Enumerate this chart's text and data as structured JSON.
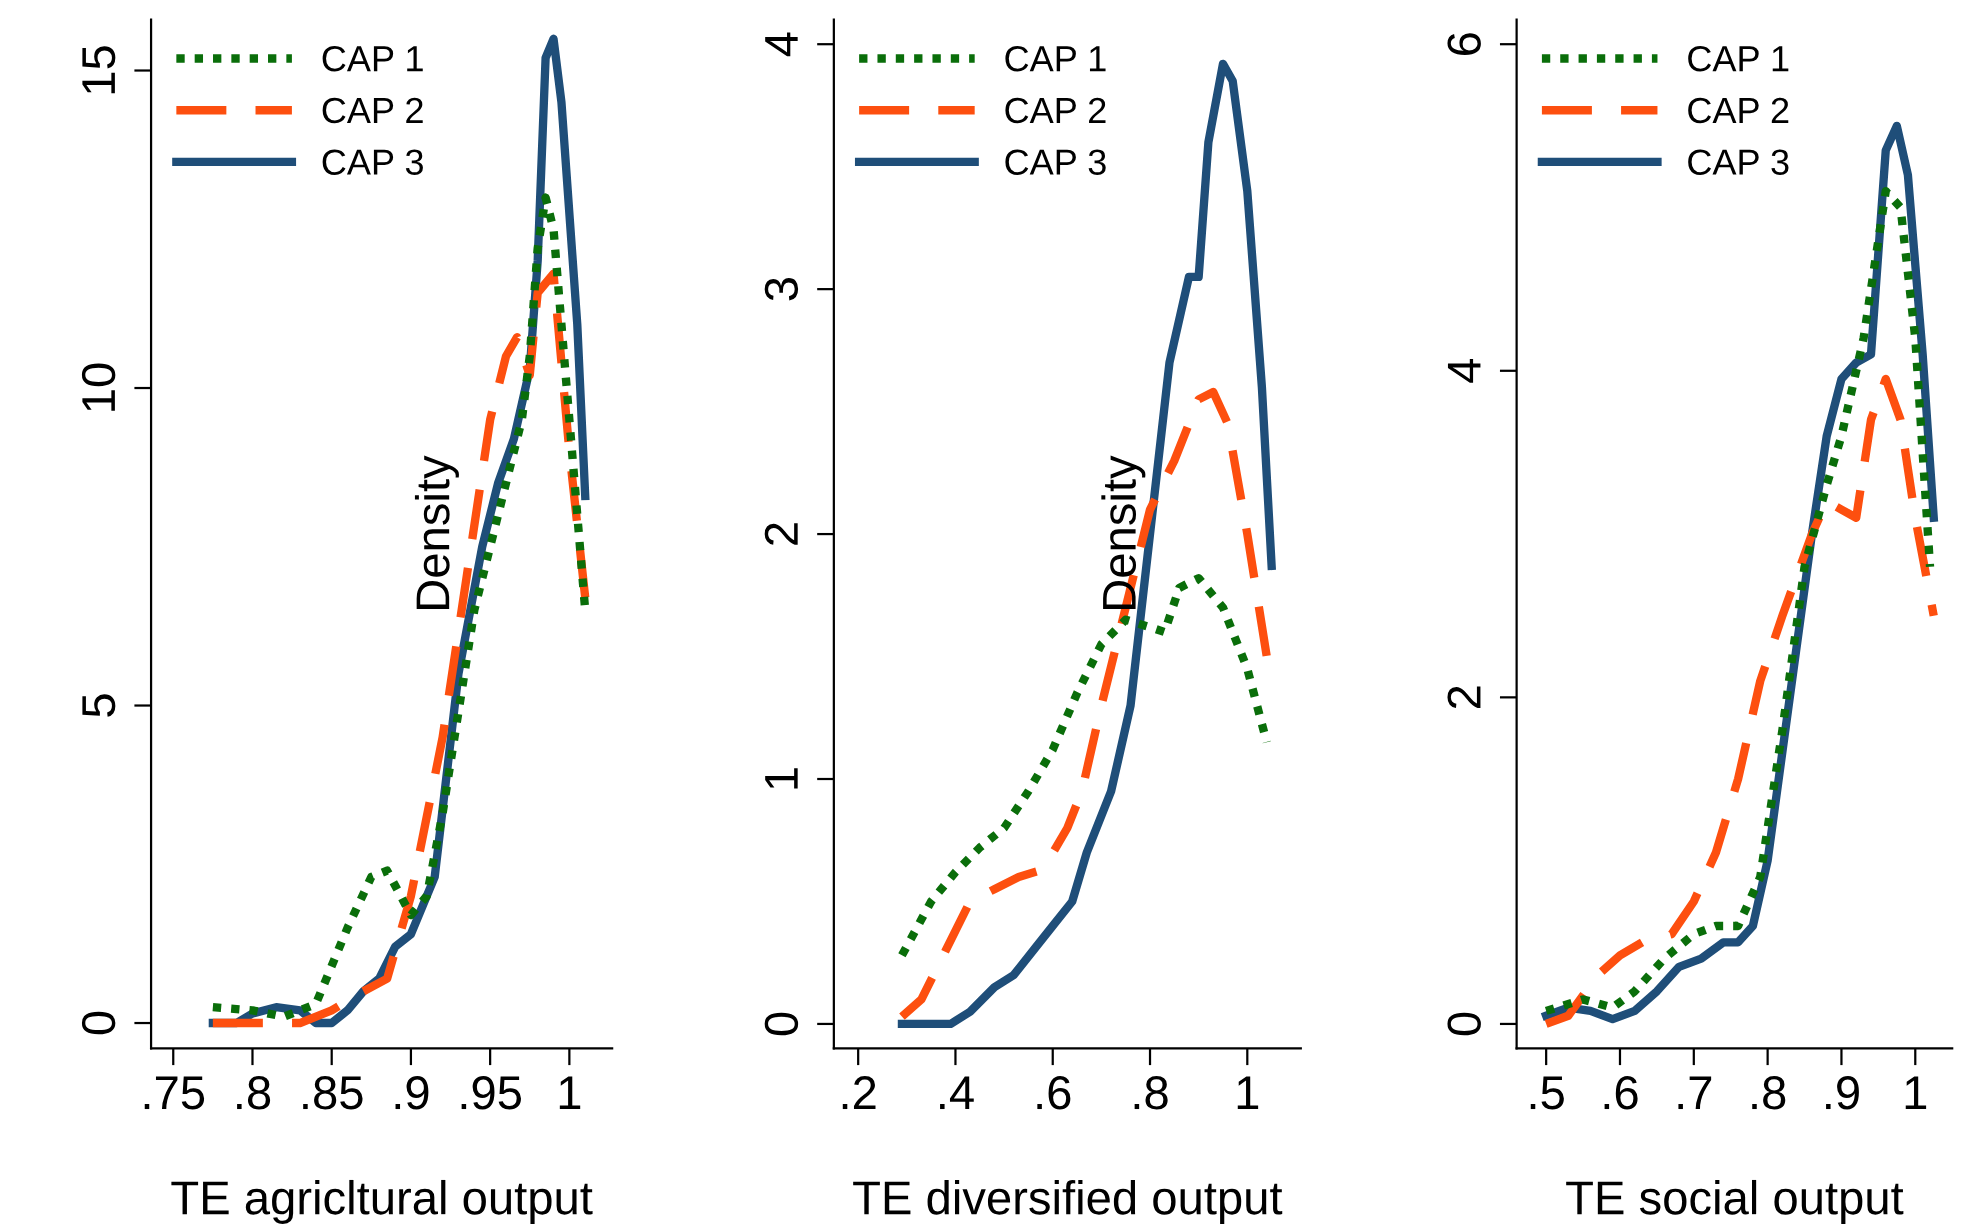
{
  "chart_data": [
    {
      "type": "line",
      "xlabel": "TE agricltural output",
      "annotations": [
        "Density"
      ],
      "xlim": [
        0.736,
        1.027
      ],
      "ylim": [
        -0.4,
        15.8
      ],
      "xticks": [
        {
          "value": 0.75,
          "label": ".75"
        },
        {
          "value": 0.8,
          "label": ".8"
        },
        {
          "value": 0.85,
          "label": ".85"
        },
        {
          "value": 0.9,
          "label": ".9"
        },
        {
          "value": 0.95,
          "label": ".95"
        },
        1
      ],
      "yticks": [
        0,
        5,
        10,
        15
      ],
      "grid": false,
      "legend": "top left",
      "series": [
        {
          "name": "CAP 1",
          "color": "#0a6e0a",
          "line_style": "dotted",
          "x": [
            0.775,
            0.8,
            0.82,
            0.84,
            0.86,
            0.875,
            0.885,
            0.9,
            0.91,
            0.92,
            0.94,
            0.96,
            0.97,
            0.975,
            0.98,
            0.985,
            0.99,
            1.0,
            1.01
          ],
          "values": [
            0.25,
            0.2,
            0.1,
            0.3,
            1.5,
            2.3,
            2.4,
            1.7,
            2.0,
            3.3,
            6.5,
            8.5,
            9.5,
            10.5,
            12.2,
            13.0,
            12.5,
            9.5,
            6.5
          ]
        },
        {
          "name": "CAP 2",
          "color": "#fd4f0f",
          "line_style": "dashed",
          "x": [
            0.775,
            0.8,
            0.83,
            0.85,
            0.87,
            0.885,
            0.9,
            0.92,
            0.935,
            0.95,
            0.96,
            0.967,
            0.975,
            0.98,
            0.99,
            1.0,
            1.01
          ],
          "values": [
            0,
            0,
            0,
            0.2,
            0.5,
            0.7,
            2,
            4.5,
            7,
            9.5,
            10.5,
            10.8,
            10.2,
            11.5,
            11.8,
            9,
            6.7
          ]
        },
        {
          "name": "CAP 3",
          "color": "#1f4e79",
          "line_style": "solid",
          "x": [
            0.775,
            0.79,
            0.8,
            0.815,
            0.83,
            0.84,
            0.85,
            0.86,
            0.87,
            0.88,
            0.89,
            0.9,
            0.915,
            0.93,
            0.945,
            0.955,
            0.965,
            0.975,
            0.98,
            0.985,
            0.99,
            0.995,
            1.005,
            1.01
          ],
          "values": [
            0,
            0,
            0.15,
            0.25,
            0.2,
            0,
            0,
            0.2,
            0.5,
            0.7,
            1.2,
            1.4,
            2.3,
            5.5,
            7.5,
            8.5,
            9.2,
            10.3,
            12,
            15.2,
            15.5,
            14.5,
            11,
            8.3
          ]
        }
      ]
    },
    {
      "type": "line",
      "xlabel": "TE diversified output",
      "annotations": [
        "Density"
      ],
      "xlim": [
        0.15,
        1.11
      ],
      "ylim": [
        -0.1,
        4.1
      ],
      "xticks": [
        {
          "value": 0.2,
          "label": ".2"
        },
        {
          "value": 0.4,
          "label": ".4"
        },
        {
          "value": 0.6,
          "label": ".6"
        },
        {
          "value": 0.8,
          "label": ".8"
        },
        1
      ],
      "yticks": [
        0,
        1,
        2,
        3,
        4
      ],
      "grid": false,
      "legend": "top left",
      "series": [
        {
          "name": "CAP 1",
          "color": "#0a6e0a",
          "line_style": "dotted",
          "x": [
            0.29,
            0.35,
            0.4,
            0.45,
            0.5,
            0.55,
            0.6,
            0.65,
            0.7,
            0.75,
            0.8,
            0.83,
            0.86,
            0.9,
            0.95,
            1.0,
            1.04
          ],
          "values": [
            0.28,
            0.5,
            0.62,
            0.72,
            0.8,
            0.95,
            1.12,
            1.35,
            1.55,
            1.65,
            1.62,
            1.6,
            1.78,
            1.82,
            1.7,
            1.45,
            1.15
          ]
        },
        {
          "name": "CAP 2",
          "color": "#fd4f0f",
          "line_style": "dashed",
          "x": [
            0.29,
            0.33,
            0.38,
            0.43,
            0.48,
            0.53,
            0.58,
            0.63,
            0.66,
            0.7,
            0.75,
            0.8,
            0.85,
            0.9,
            0.93,
            0.96,
            1.0,
            1.04
          ],
          "values": [
            0.03,
            0.1,
            0.3,
            0.5,
            0.55,
            0.6,
            0.63,
            0.8,
            0.95,
            1.3,
            1.7,
            2.1,
            2.3,
            2.55,
            2.58,
            2.45,
            2.0,
            1.5
          ]
        },
        {
          "name": "CAP 3",
          "color": "#1f4e79",
          "line_style": "solid",
          "x": [
            0.29,
            0.39,
            0.43,
            0.48,
            0.52,
            0.56,
            0.6,
            0.64,
            0.67,
            0.72,
            0.76,
            0.8,
            0.84,
            0.88,
            0.9,
            0.92,
            0.95,
            0.97,
            1.0,
            1.03,
            1.05
          ],
          "values": [
            0,
            0,
            0.05,
            0.15,
            0.2,
            0.3,
            0.4,
            0.5,
            0.7,
            0.95,
            1.3,
            2.0,
            2.7,
            3.05,
            3.05,
            3.6,
            3.92,
            3.85,
            3.4,
            2.6,
            1.87
          ]
        }
      ]
    },
    {
      "type": "line",
      "xlabel": "TE social output",
      "xlim": [
        0.46,
        1.05
      ],
      "ylim": [
        -0.15,
        6.15
      ],
      "xticks": [
        {
          "value": 0.5,
          "label": ".5"
        },
        {
          "value": 0.6,
          "label": ".6"
        },
        {
          "value": 0.7,
          "label": ".7"
        },
        {
          "value": 0.8,
          "label": ".8"
        },
        {
          "value": 0.9,
          "label": ".9"
        },
        1
      ],
      "yticks": [
        0,
        2,
        4,
        6
      ],
      "grid": false,
      "legend": "top left",
      "series": [
        {
          "name": "CAP 1",
          "color": "#0a6e0a",
          "line_style": "dotted",
          "x": [
            0.5,
            0.55,
            0.59,
            0.62,
            0.66,
            0.7,
            0.73,
            0.76,
            0.79,
            0.82,
            0.85,
            0.88,
            0.9,
            0.93,
            0.96,
            0.98,
            1.0,
            1.02
          ],
          "values": [
            0.08,
            0.15,
            0.1,
            0.2,
            0.4,
            0.55,
            0.6,
            0.6,
            0.9,
            1.8,
            2.8,
            3.3,
            3.6,
            4.2,
            5.1,
            5.0,
            4.2,
            2.8
          ]
        },
        {
          "name": "CAP 2",
          "color": "#fd4f0f",
          "line_style": "dashed",
          "x": [
            0.5,
            0.53,
            0.57,
            0.6,
            0.63,
            0.67,
            0.7,
            0.73,
            0.76,
            0.79,
            0.82,
            0.86,
            0.88,
            0.9,
            0.92,
            0.94,
            0.96,
            0.98,
            1.0,
            1.025
          ],
          "values": [
            0,
            0.05,
            0.3,
            0.42,
            0.5,
            0.55,
            0.75,
            1.05,
            1.5,
            2.1,
            2.5,
            3.0,
            3.2,
            3.15,
            3.1,
            3.7,
            3.95,
            3.7,
            3.1,
            2.5
          ]
        },
        {
          "name": "CAP 3",
          "color": "#1f4e79",
          "line_style": "solid",
          "x": [
            0.5,
            0.53,
            0.56,
            0.59,
            0.62,
            0.65,
            0.68,
            0.71,
            0.74,
            0.76,
            0.78,
            0.8,
            0.83,
            0.86,
            0.88,
            0.9,
            0.92,
            0.94,
            0.96,
            0.975,
            0.99,
            1.01,
            1.025
          ],
          "values": [
            0.05,
            0.1,
            0.08,
            0.03,
            0.08,
            0.2,
            0.35,
            0.4,
            0.5,
            0.5,
            0.6,
            1.0,
            2.0,
            3.0,
            3.6,
            3.95,
            4.05,
            4.1,
            5.35,
            5.5,
            5.2,
            4.1,
            3.1
          ]
        }
      ]
    }
  ]
}
